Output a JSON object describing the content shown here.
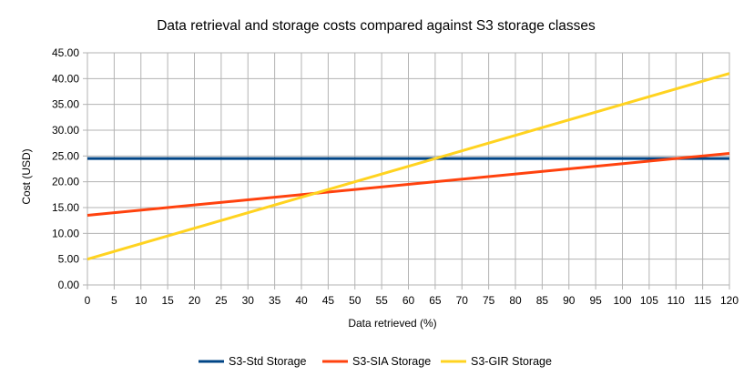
{
  "chart_data": {
    "type": "line",
    "title": "Data retrieval and storage costs compared against S3 storage classes",
    "xlabel": "Data retrieved (%)",
    "ylabel": "Cost (USD)",
    "xlim": [
      0,
      120
    ],
    "ylim": [
      0,
      45
    ],
    "x_ticks": [
      "0",
      "5",
      "10",
      "15",
      "20",
      "25",
      "30",
      "35",
      "40",
      "45",
      "50",
      "55",
      "60",
      "65",
      "70",
      "75",
      "80",
      "85",
      "90",
      "95",
      "100",
      "105",
      "110",
      "115",
      "120"
    ],
    "y_ticks": [
      "0.00",
      "5.00",
      "10.00",
      "15.00",
      "20.00",
      "25.00",
      "30.00",
      "35.00",
      "40.00",
      "45.00"
    ],
    "grid": true,
    "legend_position": "bottom",
    "x": [
      0,
      120
    ],
    "series": [
      {
        "name": "S3-Std Storage",
        "color": "#004586",
        "values": [
          24.5,
          24.5
        ]
      },
      {
        "name": "S3-SIA Storage",
        "color": "#ff420e",
        "values": [
          13.5,
          25.5
        ]
      },
      {
        "name": "S3-GIR Storage",
        "color": "#ffd320",
        "values": [
          5.0,
          41.0
        ]
      }
    ]
  }
}
